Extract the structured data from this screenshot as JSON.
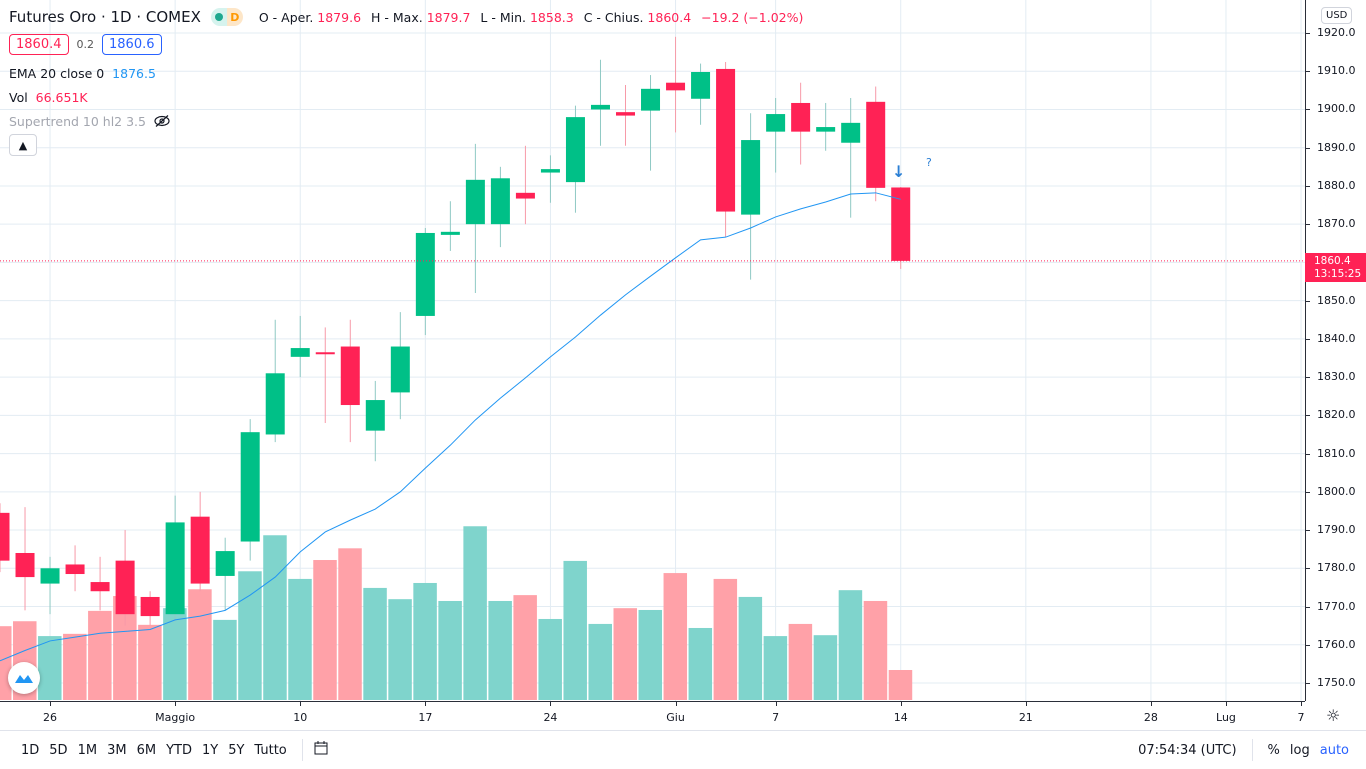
{
  "header": {
    "symbol": "Futures Oro · 1D · COMEX",
    "market_badge": "D",
    "ohlc": {
      "o_label": "O - Aper.",
      "o": "1879.6",
      "h_label": "H - Max.",
      "h": "1879.7",
      "l_label": "L - Min.",
      "l": "1858.3",
      "c_label": "C - Chius.",
      "c": "1860.4",
      "change": "−19.2 (−1.02%)"
    },
    "bid": "1860.4",
    "spread": "0.2",
    "ask": "1860.6",
    "indicators": {
      "ema_label": "EMA 20 close 0",
      "ema_value": "1876.5",
      "vol_label": "Vol",
      "vol_value": "66.651K",
      "supertrend_label": "Supertrend 10 hl2 3.5"
    },
    "collapse_icon": "chevron-up-icon"
  },
  "price_axis": {
    "currency": "USD",
    "ticks": [
      "1920.0",
      "1910.0",
      "1900.0",
      "1890.0",
      "1880.0",
      "1870.0",
      "1850.0",
      "1840.0",
      "1830.0",
      "1820.0",
      "1810.0",
      "1800.0",
      "1790.0",
      "1780.0",
      "1770.0",
      "1760.0",
      "1750.0"
    ],
    "last_price": "1860.4",
    "countdown": "13:15:25"
  },
  "signal": {
    "arrow": "↓",
    "question": "?"
  },
  "bottom_bar": {
    "ranges": [
      "1D",
      "5D",
      "1M",
      "3M",
      "6M",
      "YTD",
      "1Y",
      "5Y",
      "Tutto"
    ],
    "time": "07:54:34 (UTC)",
    "percent": "%",
    "log": "log",
    "auto": "auto"
  },
  "colors": {
    "up": "#00c087",
    "down": "#ff2255",
    "ema": "#2196f3",
    "vol_up": "#7fd4cc",
    "vol_down": "#ffa1a8",
    "grid": "#e3ecf3"
  },
  "chart_data": {
    "type": "candlestick",
    "title": "Futures Oro · 1D · COMEX",
    "ylim": [
      1745,
      1925
    ],
    "grid": true,
    "x_ticks": [
      {
        "label": "26",
        "date": "2021-04-26"
      },
      {
        "label": "Maggio",
        "date": "2021-05-03"
      },
      {
        "label": "10",
        "date": "2021-05-10"
      },
      {
        "label": "17",
        "date": "2021-05-17"
      },
      {
        "label": "24",
        "date": "2021-05-24"
      },
      {
        "label": "Giu",
        "date": "2021-06-01"
      },
      {
        "label": "7",
        "date": "2021-06-07"
      },
      {
        "label": "14",
        "date": "2021-06-14"
      },
      {
        "label": "21",
        "date": "2021-06-21"
      },
      {
        "label": "28",
        "date": "2021-06-28"
      },
      {
        "label": "Lug",
        "date": "2021-07-01"
      },
      {
        "label": "7",
        "date": "2021-07-07"
      }
    ],
    "candles": [
      {
        "date": "2021-04-22",
        "o": 1794.5,
        "h": 1797,
        "l": 1779,
        "c": 1782,
        "v": 164
      },
      {
        "date": "2021-04-23",
        "o": 1784,
        "h": 1796,
        "l": 1769,
        "c": 1777.7,
        "v": 175
      },
      {
        "date": "2021-04-26",
        "o": 1776,
        "h": 1783,
        "l": 1768,
        "c": 1780,
        "v": 142
      },
      {
        "date": "2021-04-27",
        "o": 1781,
        "h": 1786,
        "l": 1774,
        "c": 1778.5,
        "v": 147
      },
      {
        "date": "2021-04-28",
        "o": 1776.4,
        "h": 1783,
        "l": 1769,
        "c": 1774,
        "v": 198
      },
      {
        "date": "2021-04-29",
        "o": 1782,
        "h": 1790,
        "l": 1765,
        "c": 1768,
        "v": 231
      },
      {
        "date": "2021-04-30",
        "o": 1772.5,
        "h": 1774,
        "l": 1765,
        "c": 1767.5,
        "v": 167
      },
      {
        "date": "2021-05-03",
        "o": 1768,
        "h": 1799,
        "l": 1766,
        "c": 1792,
        "v": 204
      },
      {
        "date": "2021-05-04",
        "o": 1793.5,
        "h": 1800,
        "l": 1774,
        "c": 1776,
        "v": 246
      },
      {
        "date": "2021-05-05",
        "o": 1778,
        "h": 1788,
        "l": 1769,
        "c": 1784.5,
        "v": 178
      },
      {
        "date": "2021-05-06",
        "o": 1787,
        "h": 1819,
        "l": 1782,
        "c": 1815.6,
        "v": 286
      },
      {
        "date": "2021-05-07",
        "o": 1815,
        "h": 1845,
        "l": 1813,
        "c": 1831,
        "v": 366
      },
      {
        "date": "2021-05-10",
        "o": 1835.3,
        "h": 1846,
        "l": 1830,
        "c": 1837.6,
        "v": 269
      },
      {
        "date": "2021-05-11",
        "o": 1836.5,
        "h": 1843,
        "l": 1818,
        "c": 1836,
        "v": 311
      },
      {
        "date": "2021-05-12",
        "o": 1838,
        "h": 1845,
        "l": 1813,
        "c": 1822.7,
        "v": 337
      },
      {
        "date": "2021-05-13",
        "o": 1816,
        "h": 1829,
        "l": 1808,
        "c": 1824,
        "v": 249
      },
      {
        "date": "2021-05-14",
        "o": 1826,
        "h": 1847,
        "l": 1819,
        "c": 1838,
        "v": 224
      },
      {
        "date": "2021-05-17",
        "o": 1846,
        "h": 1869,
        "l": 1841,
        "c": 1867.7,
        "v": 260
      },
      {
        "date": "2021-05-18",
        "o": 1867.2,
        "h": 1876,
        "l": 1863,
        "c": 1868,
        "v": 220
      },
      {
        "date": "2021-05-19",
        "o": 1870,
        "h": 1891,
        "l": 1852,
        "c": 1881.6,
        "v": 386
      },
      {
        "date": "2021-05-20",
        "o": 1870,
        "h": 1885,
        "l": 1864,
        "c": 1882,
        "v": 220
      },
      {
        "date": "2021-05-21",
        "o": 1878.2,
        "h": 1890.5,
        "l": 1870,
        "c": 1876.7,
        "v": 233
      },
      {
        "date": "2021-05-24",
        "o": 1883.5,
        "h": 1888,
        "l": 1875.6,
        "c": 1884.4,
        "v": 180
      },
      {
        "date": "2021-05-25",
        "o": 1881,
        "h": 1901,
        "l": 1873,
        "c": 1898,
        "v": 309
      },
      {
        "date": "2021-05-26",
        "o": 1900,
        "h": 1913,
        "l": 1890.5,
        "c": 1901.2,
        "v": 169
      },
      {
        "date": "2021-05-27",
        "o": 1899.3,
        "h": 1906.4,
        "l": 1890.5,
        "c": 1898.4,
        "v": 204
      },
      {
        "date": "2021-05-28",
        "o": 1899.7,
        "h": 1909,
        "l": 1884,
        "c": 1905.4,
        "v": 200
      },
      {
        "date": "2021-06-01",
        "o": 1907,
        "h": 1919,
        "l": 1894,
        "c": 1905,
        "v": 282
      },
      {
        "date": "2021-06-02",
        "o": 1902.8,
        "h": 1912,
        "l": 1896,
        "c": 1909.8,
        "v": 160
      },
      {
        "date": "2021-06-03",
        "o": 1910.6,
        "h": 1912.4,
        "l": 1866.6,
        "c": 1873.3,
        "v": 269
      },
      {
        "date": "2021-06-04",
        "o": 1872.5,
        "h": 1899,
        "l": 1855.5,
        "c": 1892,
        "v": 229
      },
      {
        "date": "2021-06-07",
        "o": 1894.2,
        "h": 1903,
        "l": 1883.5,
        "c": 1898.8,
        "v": 142
      },
      {
        "date": "2021-06-08",
        "o": 1901.7,
        "h": 1907,
        "l": 1885.6,
        "c": 1894.2,
        "v": 169
      },
      {
        "date": "2021-06-09",
        "o": 1894.2,
        "h": 1901.7,
        "l": 1889.2,
        "c": 1895.4,
        "v": 144
      },
      {
        "date": "2021-06-10",
        "o": 1891.3,
        "h": 1903,
        "l": 1871.7,
        "c": 1896.5,
        "v": 244
      },
      {
        "date": "2021-06-11",
        "o": 1902,
        "h": 1906,
        "l": 1876,
        "c": 1879.5,
        "v": 220
      },
      {
        "date": "2021-06-14",
        "o": 1879.6,
        "h": 1879.7,
        "l": 1858.3,
        "c": 1860.4,
        "v": 66.651
      }
    ],
    "ema20": [
      1755.8,
      1758.5,
      1761,
      1762,
      1763,
      1763.5,
      1764,
      1766.5,
      1767.5,
      1769,
      1773,
      1777.7,
      1784.3,
      1789.5,
      1792.6,
      1795.5,
      1800,
      1806.2,
      1812.2,
      1818.8,
      1824.5,
      1829.8,
      1835.3,
      1840.5,
      1846.2,
      1851.5,
      1856.4,
      1861.2,
      1865.9,
      1866.6,
      1869,
      1871.9,
      1874,
      1875.8,
      1877.9,
      1878.2,
      1876.5
    ]
  }
}
